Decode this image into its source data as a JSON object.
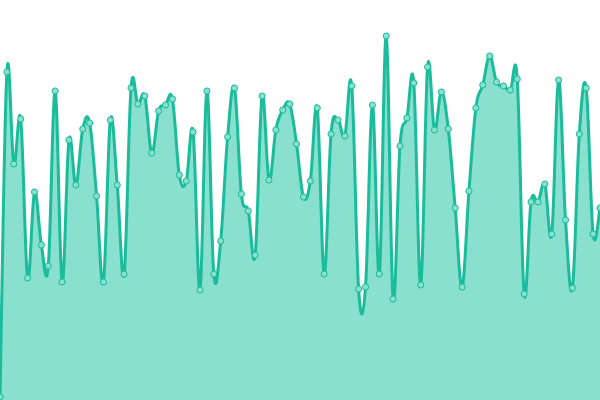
{
  "chart_data": {
    "type": "area",
    "title": "",
    "xlabel": "",
    "ylabel": "",
    "ylim": [
      0,
      400
    ],
    "grid": false,
    "legend": "none",
    "smooth": true,
    "colors": {
      "line": "#1abc9c",
      "fill": "#8ae0ce",
      "marker_fill": "#8ae0ce"
    },
    "x": [
      0,
      1,
      2,
      3,
      4,
      5,
      6,
      7,
      8,
      9,
      10,
      11,
      12,
      13,
      14,
      15,
      16,
      17,
      18,
      19,
      20,
      21,
      22,
      23,
      24,
      25,
      26,
      27,
      28,
      29,
      30,
      31,
      32,
      33,
      34,
      35,
      36,
      37,
      38,
      39,
      40,
      41,
      42,
      43,
      44,
      45,
      46,
      47,
      48,
      49,
      50,
      51,
      52,
      53,
      54,
      55,
      56,
      57,
      58,
      59,
      60,
      61,
      62,
      63,
      64,
      65,
      66,
      67,
      68,
      69,
      70,
      71,
      72,
      73,
      74,
      75,
      76,
      77,
      78,
      79,
      80,
      81,
      82,
      83,
      84,
      85,
      86,
      87
    ],
    "values": [
      3,
      328,
      236,
      281,
      122,
      208,
      155,
      134,
      309,
      118,
      260,
      215,
      271,
      277,
      204,
      118,
      280,
      215,
      126,
      312,
      296,
      304,
      247,
      289,
      295,
      301,
      225,
      219,
      268,
      110,
      309,
      126,
      159,
      263,
      312,
      206,
      189,
      145,
      304,
      220,
      270,
      290,
      296,
      256,
      203,
      219,
      292,
      126,
      266,
      280,
      264,
      314,
      111,
      113,
      295,
      126,
      364,
      101,
      254,
      282,
      317,
      115,
      333,
      270,
      308,
      271,
      192,
      113,
      209,
      292,
      315,
      344,
      318,
      314,
      310,
      321,
      106,
      198,
      198,
      216,
      166,
      320,
      180,
      112,
      266,
      312,
      166,
      192
    ]
  }
}
